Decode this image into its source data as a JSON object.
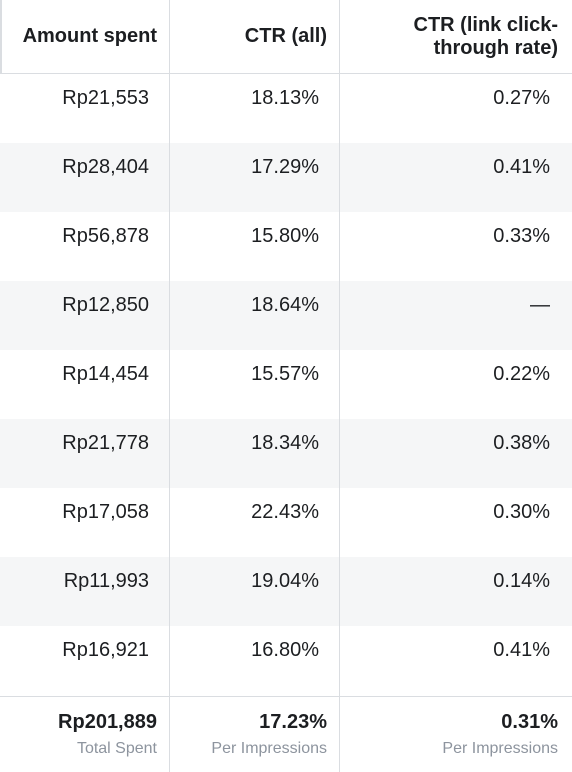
{
  "columns": {
    "amount_spent": "Amount spent",
    "ctr_all": "CTR (all)",
    "ctr_link": "CTR (link click-through rate)"
  },
  "rows": [
    {
      "amount_spent": "Rp21,553",
      "ctr_all": "18.13%",
      "ctr_link": "0.27%"
    },
    {
      "amount_spent": "Rp28,404",
      "ctr_all": "17.29%",
      "ctr_link": "0.41%"
    },
    {
      "amount_spent": "Rp56,878",
      "ctr_all": "15.80%",
      "ctr_link": "0.33%"
    },
    {
      "amount_spent": "Rp12,850",
      "ctr_all": "18.64%",
      "ctr_link": "—"
    },
    {
      "amount_spent": "Rp14,454",
      "ctr_all": "15.57%",
      "ctr_link": "0.22%"
    },
    {
      "amount_spent": "Rp21,778",
      "ctr_all": "18.34%",
      "ctr_link": "0.38%"
    },
    {
      "amount_spent": "Rp17,058",
      "ctr_all": "22.43%",
      "ctr_link": "0.30%"
    },
    {
      "amount_spent": "Rp11,993",
      "ctr_all": "19.04%",
      "ctr_link": "0.14%"
    },
    {
      "amount_spent": "Rp16,921",
      "ctr_all": "16.80%",
      "ctr_link": "0.41%"
    }
  ],
  "totals": {
    "amount_spent": {
      "value": "Rp201,889",
      "caption": "Total Spent"
    },
    "ctr_all": {
      "value": "17.23%",
      "caption": "Per Impressions"
    },
    "ctr_link": {
      "value": "0.31%",
      "caption": "Per Impressions"
    }
  }
}
